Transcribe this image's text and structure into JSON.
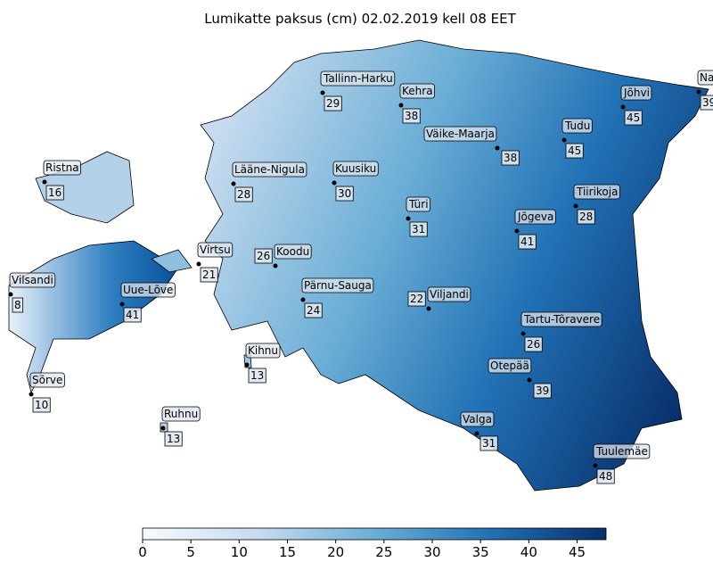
{
  "title": "Lumikatte paksus (cm) 02.02.2019 kell 08 EET",
  "stations": [
    {
      "name": "Tallinn-Harku",
      "value": 29
    },
    {
      "name": "Kehra",
      "value": 38
    },
    {
      "name": "Väike-Maarja",
      "value": 38
    },
    {
      "name": "Tudu",
      "value": 45
    },
    {
      "name": "Jõhvi",
      "value": 45
    },
    {
      "name": "Narva",
      "value": 39
    },
    {
      "name": "Ristna",
      "value": 16
    },
    {
      "name": "Lääne-Nigula",
      "value": 28
    },
    {
      "name": "Kuusiku",
      "value": 30
    },
    {
      "name": "Türi",
      "value": 31
    },
    {
      "name": "Tiirikoja",
      "value": 28
    },
    {
      "name": "Jõgeva",
      "value": 41
    },
    {
      "name": "Virtsu",
      "value": 21
    },
    {
      "name": "Koodu",
      "value": 26
    },
    {
      "name": "Vilsandi",
      "value": 8
    },
    {
      "name": "Uue-Lõve",
      "value": 41
    },
    {
      "name": "Pärnu-Sauga",
      "value": 24
    },
    {
      "name": "Viljandi",
      "value": 22
    },
    {
      "name": "Tartu-Tõravere",
      "value": 26
    },
    {
      "name": "Kihnu",
      "value": 13
    },
    {
      "name": "Sõrve",
      "value": 10
    },
    {
      "name": "Otepää",
      "value": 39
    },
    {
      "name": "Valga",
      "value": 31
    },
    {
      "name": "Ruhnu",
      "value": 13
    },
    {
      "name": "Tuulemäe",
      "value": 48
    }
  ],
  "colorbar": {
    "lim": [
      0,
      48
    ],
    "ticks": [
      0,
      5,
      10,
      15,
      20,
      25,
      30,
      35,
      40,
      45
    ]
  }
}
